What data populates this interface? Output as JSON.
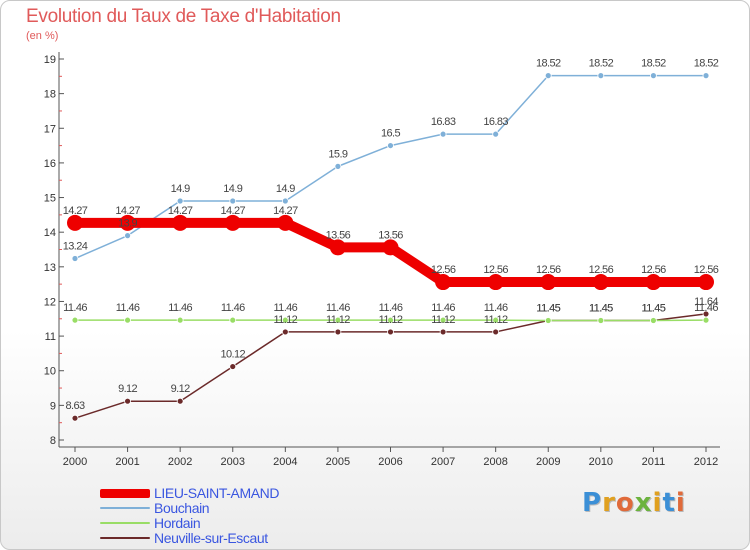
{
  "header": {
    "title": "Evolution du Taux de Taxe d'Habitation",
    "subtitle": "(en %)"
  },
  "logo": {
    "text": "Proxiti",
    "colors": [
      "#3b8fd6",
      "#e0a020",
      "#e06a3a",
      "#6cb33e",
      "#e0a020",
      "#3b8fd6",
      "#e06a3a"
    ]
  },
  "chart_data": {
    "type": "line",
    "title": "Evolution du Taux de Taxe d'Habitation",
    "ylabel": "(en %)",
    "xlabel": "",
    "x": [
      "2000",
      "2001",
      "2002",
      "2003",
      "2004",
      "2005",
      "2006",
      "2007",
      "2008",
      "2009",
      "2010",
      "2011",
      "2012"
    ],
    "ylim": [
      8,
      19
    ],
    "yticks": [
      "8",
      "9",
      "10",
      "11",
      "12",
      "13",
      "14",
      "15",
      "16",
      "17",
      "18",
      "19"
    ],
    "legend_position": "bottom-left",
    "grid": false,
    "series": [
      {
        "name": "LIEU-SAINT-AMAND",
        "color": "#ee0000",
        "values": [
          14.27,
          14.27,
          14.27,
          14.27,
          14.27,
          13.56,
          13.56,
          12.56,
          12.56,
          12.56,
          12.56,
          12.56,
          12.56
        ],
        "labels": [
          "14.27",
          "14.27",
          "14.27",
          "14.27",
          "14.27",
          "13.56",
          "13.56",
          "12.56",
          "12.56",
          "12.56",
          "12.56",
          "12.56",
          "12.56"
        ]
      },
      {
        "name": "Bouchain",
        "color": "#7fb0d8",
        "values": [
          13.24,
          13.9,
          14.9,
          14.9,
          14.9,
          15.9,
          16.5,
          16.83,
          16.83,
          18.52,
          18.52,
          18.52,
          18.52
        ],
        "labels": [
          "13.24",
          "13.9",
          "14.9",
          "14.9",
          "14.9",
          "15.9",
          "16.5",
          "16.83",
          "16.83",
          "18.52",
          "18.52",
          "18.52",
          "18.52"
        ]
      },
      {
        "name": "Hordain",
        "color": "#99dd66",
        "values": [
          11.46,
          11.46,
          11.46,
          11.46,
          11.46,
          11.46,
          11.46,
          11.46,
          11.46,
          11.45,
          11.45,
          11.45,
          11.46
        ],
        "labels": [
          "11.46",
          "11.46",
          "11.46",
          "11.46",
          "11.46",
          "11.46",
          "11.46",
          "11.46",
          "11.46",
          "11.45",
          "11.45",
          "11.45",
          "11.46"
        ]
      },
      {
        "name": "Neuville-sur-Escaut",
        "color": "#6b2a2a",
        "values": [
          8.63,
          9.12,
          9.12,
          10.12,
          11.12,
          11.12,
          11.12,
          11.12,
          11.12,
          11.45,
          11.45,
          11.45,
          11.64
        ],
        "labels": [
          "8.63",
          "9.12",
          "9.12",
          "10.12",
          "11.12",
          "11.12",
          "11.12",
          "11.12",
          "11.12",
          "11.45",
          "11.45",
          "11.45",
          "11.64"
        ]
      }
    ]
  }
}
